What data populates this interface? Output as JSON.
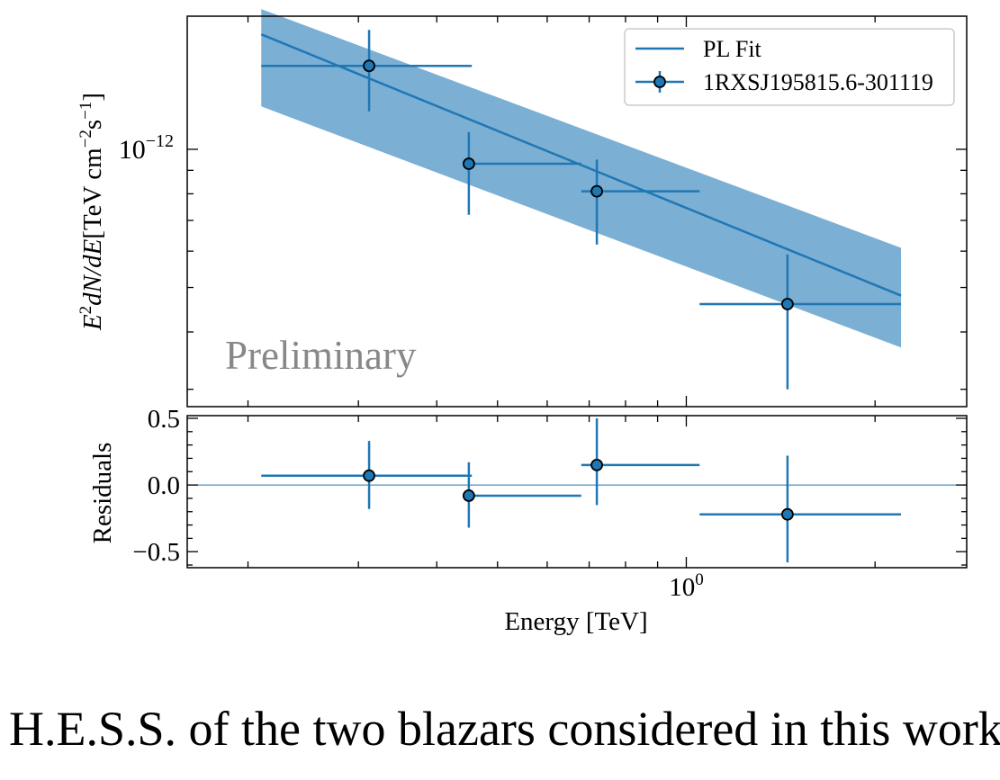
{
  "chart_data": [
    {
      "type": "scatter",
      "panel": "spectrum",
      "xscale": "log",
      "yscale": "log",
      "xlim": [
        0.16,
        2.8
      ],
      "ylim": [
        2.75e-13,
        1.95e-12
      ],
      "ylabel_parts": {
        "main": "E",
        "sup": "2",
        "rest": "dN/dE",
        "unit": "[TeV cm",
        "unit_sup1": "−2",
        "unit_mid": "s",
        "unit_sup2": "−1",
        "unit_end": "]"
      },
      "yticks": [
        {
          "value": 1e-12,
          "base": "10",
          "exp": "−12"
        }
      ],
      "annotation": "Preliminary",
      "legend": {
        "location": "upper right",
        "fit_label": "PL Fit",
        "data_label": "1RXSJ195815.6-301119"
      },
      "color": "#1f77b4",
      "band_color": "#7bafd4",
      "points": [
        {
          "x": 0.312,
          "y": 1.52e-12,
          "xlo": 0.21,
          "xhi": 0.455,
          "ylo": 1.21e-12,
          "yhi": 1.82e-12
        },
        {
          "x": 0.45,
          "y": 9.3e-13,
          "xlo": 0.455,
          "xhi": 0.68,
          "ylo": 7.2e-13,
          "yhi": 1.09e-12
        },
        {
          "x": 0.72,
          "y": 8.1e-13,
          "xlo": 0.68,
          "xhi": 1.05,
          "ylo": 6.2e-13,
          "yhi": 9.5e-13
        },
        {
          "x": 1.45,
          "y": 4.6e-13,
          "xlo": 1.05,
          "xhi": 2.2,
          "ylo": 3e-13,
          "yhi": 5.9e-13
        }
      ],
      "fit": {
        "x": [
          0.21,
          2.2
        ],
        "y": [
          1.78e-12,
          4.8e-13
        ],
        "band_lo": [
          1.24e-12,
          3.7e-13
        ],
        "band_hi": [
          2.02e-12,
          6.1e-13
        ]
      }
    },
    {
      "type": "scatter",
      "panel": "residuals",
      "xscale": "log",
      "xlim": [
        0.16,
        2.8
      ],
      "ylim": [
        -0.62,
        0.52
      ],
      "ylabel": "Residuals",
      "xlabel": "Energy [TeV]",
      "yticks": [
        {
          "value": 0.5,
          "label": "0.5"
        },
        {
          "value": 0.0,
          "label": "0.0"
        },
        {
          "value": -0.5,
          "label": "−0.5"
        }
      ],
      "xticks": [
        {
          "value": 1.0,
          "base": "10",
          "exp": "0"
        }
      ],
      "color": "#1f77b4",
      "points": [
        {
          "x": 0.312,
          "y": 0.07,
          "xlo": 0.21,
          "xhi": 0.455,
          "ylo": -0.18,
          "yhi": 0.33
        },
        {
          "x": 0.45,
          "y": -0.08,
          "xlo": 0.455,
          "xhi": 0.68,
          "ylo": -0.32,
          "yhi": 0.17
        },
        {
          "x": 0.72,
          "y": 0.15,
          "xlo": 0.68,
          "xhi": 1.05,
          "ylo": -0.15,
          "yhi": 0.5
        },
        {
          "x": 1.45,
          "y": -0.22,
          "xlo": 1.05,
          "xhi": 2.2,
          "ylo": -0.58,
          "yhi": 0.22
        }
      ]
    }
  ],
  "caption": "H.E.S.S. of the two blazars considered in this work."
}
